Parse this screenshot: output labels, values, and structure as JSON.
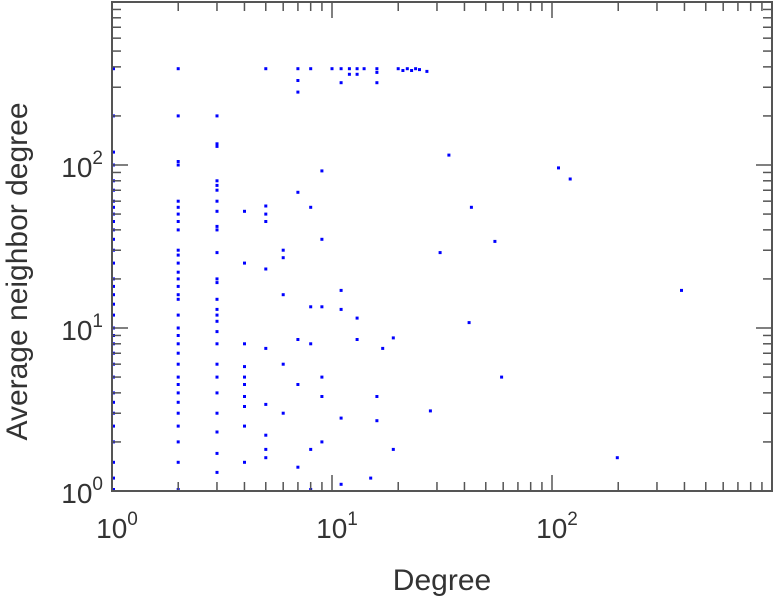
{
  "chart_data": {
    "type": "scatter",
    "title": "",
    "xlabel": "Degree",
    "ylabel": "Average neighbor degree",
    "x_scale": "log",
    "y_scale": "log",
    "xlim": [
      1,
      1000
    ],
    "ylim": [
      1,
      1000
    ],
    "grid": false,
    "legend": "none",
    "x_ticks": [
      {
        "base": "10",
        "exp": "0"
      },
      {
        "base": "10",
        "exp": "1"
      },
      {
        "base": "10",
        "exp": "2"
      }
    ],
    "y_ticks": [
      {
        "base": "10",
        "exp": "0"
      },
      {
        "base": "10",
        "exp": "1"
      },
      {
        "base": "10",
        "exp": "2"
      }
    ],
    "colors": {
      "points": "#0000ff",
      "axes": "#555555",
      "text": "#333333"
    },
    "points": [
      {
        "x": 1,
        "y": 1
      },
      {
        "x": 1,
        "y": 1.2
      },
      {
        "x": 1,
        "y": 1.5
      },
      {
        "x": 1,
        "y": 2
      },
      {
        "x": 1,
        "y": 2.5
      },
      {
        "x": 1,
        "y": 3
      },
      {
        "x": 1,
        "y": 3.5
      },
      {
        "x": 1,
        "y": 4
      },
      {
        "x": 1,
        "y": 5
      },
      {
        "x": 1,
        "y": 6
      },
      {
        "x": 1,
        "y": 7
      },
      {
        "x": 1,
        "y": 8
      },
      {
        "x": 1,
        "y": 9
      },
      {
        "x": 1,
        "y": 10
      },
      {
        "x": 1,
        "y": 12
      },
      {
        "x": 1,
        "y": 14
      },
      {
        "x": 1,
        "y": 16
      },
      {
        "x": 1,
        "y": 18
      },
      {
        "x": 1,
        "y": 20
      },
      {
        "x": 1,
        "y": 25
      },
      {
        "x": 1,
        "y": 30
      },
      {
        "x": 1,
        "y": 35
      },
      {
        "x": 1,
        "y": 40
      },
      {
        "x": 1,
        "y": 45
      },
      {
        "x": 1,
        "y": 50
      },
      {
        "x": 1,
        "y": 55
      },
      {
        "x": 1,
        "y": 60
      },
      {
        "x": 1,
        "y": 70
      },
      {
        "x": 1,
        "y": 80
      },
      {
        "x": 1,
        "y": 100
      },
      {
        "x": 1,
        "y": 120
      },
      {
        "x": 1,
        "y": 200
      },
      {
        "x": 1,
        "y": 390
      },
      {
        "x": 2,
        "y": 1
      },
      {
        "x": 2,
        "y": 1.5
      },
      {
        "x": 2,
        "y": 2
      },
      {
        "x": 2,
        "y": 2.5
      },
      {
        "x": 2,
        "y": 3
      },
      {
        "x": 2,
        "y": 3.5
      },
      {
        "x": 2,
        "y": 4
      },
      {
        "x": 2,
        "y": 4.5
      },
      {
        "x": 2,
        "y": 5
      },
      {
        "x": 2,
        "y": 6
      },
      {
        "x": 2,
        "y": 7
      },
      {
        "x": 2,
        "y": 8
      },
      {
        "x": 2,
        "y": 9
      },
      {
        "x": 2,
        "y": 10
      },
      {
        "x": 2,
        "y": 12
      },
      {
        "x": 2,
        "y": 15
      },
      {
        "x": 2,
        "y": 16
      },
      {
        "x": 2,
        "y": 18
      },
      {
        "x": 2,
        "y": 20
      },
      {
        "x": 2,
        "y": 22
      },
      {
        "x": 2,
        "y": 25
      },
      {
        "x": 2,
        "y": 28
      },
      {
        "x": 2,
        "y": 30
      },
      {
        "x": 2,
        "y": 40
      },
      {
        "x": 2,
        "y": 45
      },
      {
        "x": 2,
        "y": 50
      },
      {
        "x": 2,
        "y": 55
      },
      {
        "x": 2,
        "y": 60
      },
      {
        "x": 2,
        "y": 100
      },
      {
        "x": 2,
        "y": 105
      },
      {
        "x": 2,
        "y": 200
      },
      {
        "x": 2,
        "y": 390
      },
      {
        "x": 3,
        "y": 1.3
      },
      {
        "x": 3,
        "y": 1.7
      },
      {
        "x": 3,
        "y": 2.3
      },
      {
        "x": 3,
        "y": 3
      },
      {
        "x": 3,
        "y": 4
      },
      {
        "x": 3,
        "y": 5
      },
      {
        "x": 3,
        "y": 6
      },
      {
        "x": 3,
        "y": 8
      },
      {
        "x": 3,
        "y": 9.5
      },
      {
        "x": 3,
        "y": 11
      },
      {
        "x": 3,
        "y": 12
      },
      {
        "x": 3,
        "y": 13
      },
      {
        "x": 3,
        "y": 15
      },
      {
        "x": 3,
        "y": 19
      },
      {
        "x": 3,
        "y": 20
      },
      {
        "x": 3,
        "y": 29
      },
      {
        "x": 3,
        "y": 40
      },
      {
        "x": 3,
        "y": 42
      },
      {
        "x": 3,
        "y": 52
      },
      {
        "x": 3,
        "y": 60
      },
      {
        "x": 3,
        "y": 70
      },
      {
        "x": 3,
        "y": 75
      },
      {
        "x": 3,
        "y": 80
      },
      {
        "x": 3,
        "y": 130
      },
      {
        "x": 3,
        "y": 135
      },
      {
        "x": 3,
        "y": 200
      },
      {
        "x": 4,
        "y": 1.5
      },
      {
        "x": 4,
        "y": 2.5
      },
      {
        "x": 4,
        "y": 3.3
      },
      {
        "x": 4,
        "y": 3.8
      },
      {
        "x": 4,
        "y": 4.5
      },
      {
        "x": 4,
        "y": 5
      },
      {
        "x": 4,
        "y": 5.8
      },
      {
        "x": 4,
        "y": 8
      },
      {
        "x": 4,
        "y": 25
      },
      {
        "x": 4,
        "y": 52
      },
      {
        "x": 5,
        "y": 1.6
      },
      {
        "x": 5,
        "y": 1.8
      },
      {
        "x": 5,
        "y": 2.2
      },
      {
        "x": 5,
        "y": 3.4
      },
      {
        "x": 5,
        "y": 7.5
      },
      {
        "x": 5,
        "y": 23
      },
      {
        "x": 5,
        "y": 45
      },
      {
        "x": 5,
        "y": 50
      },
      {
        "x": 5,
        "y": 56
      },
      {
        "x": 5,
        "y": 390
      },
      {
        "x": 6,
        "y": 3
      },
      {
        "x": 6,
        "y": 6
      },
      {
        "x": 6,
        "y": 16
      },
      {
        "x": 6,
        "y": 27
      },
      {
        "x": 6,
        "y": 30
      },
      {
        "x": 7,
        "y": 1.4
      },
      {
        "x": 7,
        "y": 4.5
      },
      {
        "x": 7,
        "y": 8.5
      },
      {
        "x": 7,
        "y": 68
      },
      {
        "x": 7,
        "y": 280
      },
      {
        "x": 7,
        "y": 330
      },
      {
        "x": 7,
        "y": 390
      },
      {
        "x": 8,
        "y": 1
      },
      {
        "x": 8,
        "y": 1.8
      },
      {
        "x": 8,
        "y": 8
      },
      {
        "x": 8,
        "y": 13.5
      },
      {
        "x": 8,
        "y": 55
      },
      {
        "x": 8,
        "y": 390
      },
      {
        "x": 9,
        "y": 2
      },
      {
        "x": 9,
        "y": 3.8
      },
      {
        "x": 9,
        "y": 5
      },
      {
        "x": 9,
        "y": 13.5
      },
      {
        "x": 9,
        "y": 35
      },
      {
        "x": 9,
        "y": 92
      },
      {
        "x": 10,
        "y": 390
      },
      {
        "x": 11,
        "y": 1.1
      },
      {
        "x": 11,
        "y": 2.8
      },
      {
        "x": 11,
        "y": 13
      },
      {
        "x": 11,
        "y": 17
      },
      {
        "x": 11,
        "y": 320
      },
      {
        "x": 11,
        "y": 390
      },
      {
        "x": 12,
        "y": 360
      },
      {
        "x": 12,
        "y": 390
      },
      {
        "x": 13,
        "y": 8.5
      },
      {
        "x": 13,
        "y": 11.5
      },
      {
        "x": 13,
        "y": 360
      },
      {
        "x": 13,
        "y": 390
      },
      {
        "x": 14,
        "y": 390
      },
      {
        "x": 15,
        "y": 1.2
      },
      {
        "x": 16,
        "y": 2.7
      },
      {
        "x": 16,
        "y": 3.8
      },
      {
        "x": 16,
        "y": 320
      },
      {
        "x": 16,
        "y": 370
      },
      {
        "x": 16,
        "y": 390
      },
      {
        "x": 17,
        "y": 7.5
      },
      {
        "x": 19,
        "y": 1.8
      },
      {
        "x": 19,
        "y": 8.7
      },
      {
        "x": 20,
        "y": 390
      },
      {
        "x": 21,
        "y": 380
      },
      {
        "x": 22,
        "y": 390
      },
      {
        "x": 23,
        "y": 380
      },
      {
        "x": 24,
        "y": 390
      },
      {
        "x": 25,
        "y": 385
      },
      {
        "x": 27,
        "y": 375
      },
      {
        "x": 28,
        "y": 3.1
      },
      {
        "x": 31,
        "y": 29
      },
      {
        "x": 34,
        "y": 115
      },
      {
        "x": 42,
        "y": 10.8
      },
      {
        "x": 43,
        "y": 55
      },
      {
        "x": 55,
        "y": 34
      },
      {
        "x": 59,
        "y": 5
      },
      {
        "x": 107,
        "y": 96
      },
      {
        "x": 121,
        "y": 82
      },
      {
        "x": 198,
        "y": 1.6
      },
      {
        "x": 388,
        "y": 17
      }
    ]
  }
}
